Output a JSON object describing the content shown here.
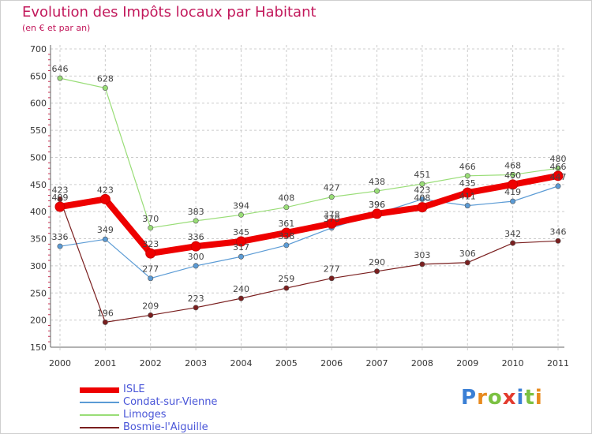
{
  "chart_data": {
    "type": "line",
    "title": "Evolution des Impôts locaux par Habitant",
    "subtitle": "(en € et par an)",
    "xlabel": "",
    "ylabel": "",
    "ylim": [
      150,
      700
    ],
    "y_ticks": [
      150,
      200,
      250,
      300,
      350,
      400,
      450,
      500,
      550,
      600,
      650,
      700
    ],
    "categories": [
      "2000",
      "2001",
      "2002",
      "2003",
      "2004",
      "2005",
      "2006",
      "2007",
      "2008",
      "2009",
      "2010",
      "2011"
    ],
    "series": [
      {
        "name": "ISLE",
        "values": [
          409,
          423,
          323,
          336,
          345,
          361,
          378,
          396,
          408,
          435,
          450,
          466
        ],
        "color": "#ee0000"
      },
      {
        "name": "Condat-sur-Vienne",
        "values": [
          336,
          349,
          277,
          300,
          317,
          338,
          370,
          396,
          423,
          411,
          419,
          447
        ],
        "color": "#5b9bd5"
      },
      {
        "name": "Limoges",
        "values": [
          646,
          628,
          370,
          383,
          394,
          408,
          427,
          438,
          451,
          466,
          468,
          480
        ],
        "color": "#99dd77"
      },
      {
        "name": "Bosmie-l'Aiguille",
        "values": [
          423,
          196,
          209,
          223,
          240,
          259,
          277,
          290,
          303,
          306,
          342,
          346
        ],
        "color": "#7a1f1f"
      }
    ],
    "legend_position": "bottom-left",
    "grid": true
  },
  "legend": {
    "items": [
      {
        "label": "ISLE"
      },
      {
        "label": "Condat-sur-Vienne"
      },
      {
        "label": "Limoges"
      },
      {
        "label": "Bosmie-l'Aiguille"
      }
    ]
  },
  "logo": {
    "text": "Proxiti",
    "letters": [
      "P",
      "r",
      "o",
      "x",
      "i",
      "t",
      "i"
    ],
    "colors": [
      "#3a7fd5",
      "#e88a1e",
      "#7bc142",
      "#e33b2e",
      "#3a7fd5",
      "#7bc142",
      "#e88a1e"
    ]
  }
}
